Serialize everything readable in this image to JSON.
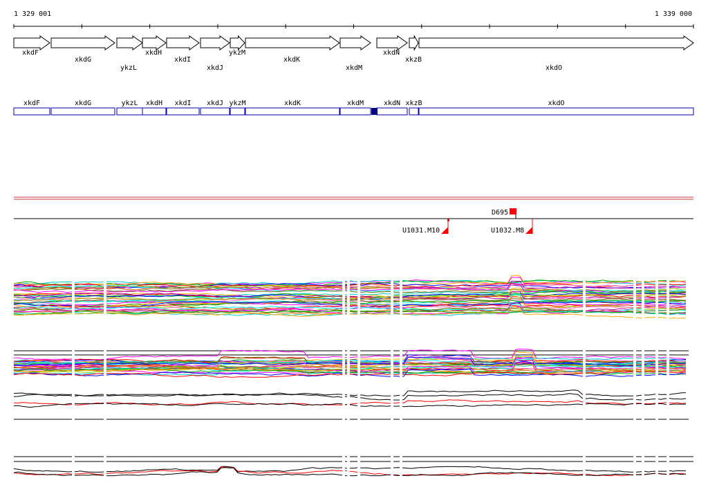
{
  "ruler": {
    "start": "1 329 001",
    "end": "1 339 000"
  },
  "genes": [
    {
      "name": "xkdF",
      "strand": "+"
    },
    {
      "name": "xkdG",
      "strand": "+"
    },
    {
      "name": "ykzL",
      "strand": "+"
    },
    {
      "name": "xkdH",
      "strand": "+"
    },
    {
      "name": "xkdI",
      "strand": "+"
    },
    {
      "name": "xkdJ",
      "strand": "+"
    },
    {
      "name": "ykzM",
      "strand": "+"
    },
    {
      "name": "xkdK",
      "strand": "+"
    },
    {
      "name": "xkdM",
      "strand": "+"
    },
    {
      "name": "xkdN",
      "strand": "+"
    },
    {
      "name": "xkzB",
      "strand": "+"
    },
    {
      "name": "xkdO",
      "strand": "+"
    }
  ],
  "features": [
    {
      "label": "D695",
      "color": "#ff0000"
    },
    {
      "label": "U1031.M10",
      "color": "#ff0000"
    },
    {
      "label": "U1032.M8",
      "color": "#ff0000"
    }
  ],
  "colors": {
    "gene_outline": "#000000",
    "gene_box": "#0000aa",
    "highlight": "#00008b",
    "separator": "#cc3333",
    "feature": "#ff0000",
    "profile_palette": [
      "#ff00ff",
      "#00cccc",
      "#00aa00",
      "#ffaa00",
      "#0000ff",
      "#ff0000",
      "#aa00aa",
      "#88cc00",
      "#ff66cc",
      "#00ffff",
      "#666600",
      "#cc6600"
    ]
  },
  "chart_data": {
    "type": "line",
    "title": "",
    "xlabel": "",
    "ylabel": "",
    "x_range": [
      "1 329 001",
      "1 339 000"
    ],
    "tracks": [
      {
        "kind": "expression profiles",
        "series_count": 40,
        "colors": "multicolor"
      },
      {
        "kind": "expression profiles",
        "series_count": 30,
        "colors": "multicolor"
      },
      {
        "kind": "profiles",
        "series": [
          "black",
          "red"
        ]
      },
      {
        "kind": "profiles",
        "series": [
          "black",
          "red"
        ]
      }
    ]
  }
}
